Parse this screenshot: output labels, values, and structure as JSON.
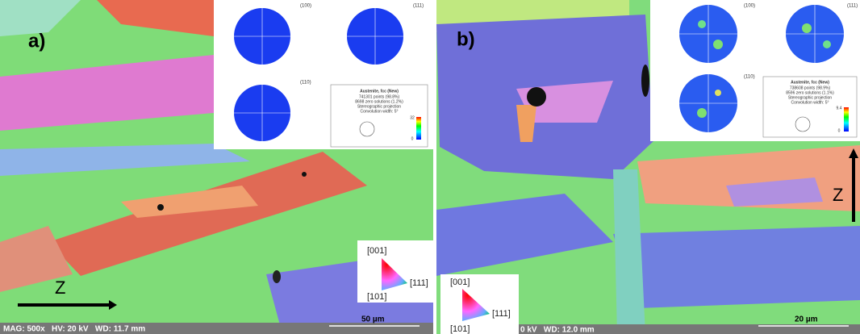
{
  "panels": [
    {
      "label": "a)",
      "pole_figures": [
        "(100)",
        "(111)",
        "(110)"
      ],
      "legend": {
        "title": "Austenite, fcc (New)",
        "lines": [
          "741301 points (98.8%)",
          "8698 zero solutions (1.2%)",
          "Stereographic projection",
          "Convolution width: 5°"
        ],
        "scale_max": "32",
        "scale_min": "0"
      },
      "ipf": [
        "[001]",
        "[101]",
        "[111]"
      ],
      "axis": "Z",
      "footer": "MAG: 500x   HV: 20 kV   WD: 11.7 mm",
      "scale_bar": "50 µm"
    },
    {
      "label": "b)",
      "pole_figures": [
        "(100)",
        "(111)",
        "(110)"
      ],
      "legend": {
        "title": "Austenite, fcc (New)",
        "lines": [
          "738608 points (98.9%)",
          "8596 zero solutions (1.1%)",
          "Stereographic projection",
          "Convolution width: 5°"
        ],
        "scale_max": "9.4",
        "scale_min": "0"
      },
      "ipf": [
        "[001]",
        "[101]",
        "[111]"
      ],
      "axis": "Z",
      "footer": "0 kV   WD: 12.0 mm",
      "scale_bar": "20 µm"
    }
  ]
}
